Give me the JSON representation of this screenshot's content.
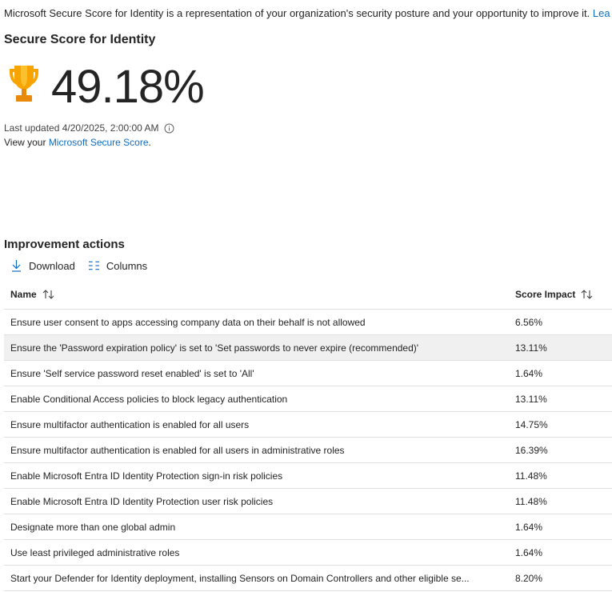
{
  "intro": {
    "text": "Microsoft Secure Score for Identity is a representation of your organization's security posture and your opportunity to improve it. ",
    "link": "Lea"
  },
  "score": {
    "title": "Secure Score for Identity",
    "value": "49.18%",
    "icon": "trophy-icon",
    "last_updated": "Last updated 4/20/2025, 2:00:00 AM",
    "view_prefix": "View your ",
    "view_link": "Microsoft Secure Score",
    "view_suffix": "."
  },
  "improvement": {
    "title": "Improvement actions",
    "toolbar": {
      "download_label": "Download",
      "columns_label": "Columns"
    },
    "columns": {
      "name": "Name",
      "impact": "Score Impact"
    },
    "rows": [
      {
        "name": "Ensure user consent to apps accessing company data on their behalf is not allowed",
        "impact": "6.56%"
      },
      {
        "name": "Ensure the 'Password expiration policy' is set to 'Set passwords to never expire (recommended)'",
        "impact": "13.11%"
      },
      {
        "name": "Ensure 'Self service password reset enabled' is set to 'All'",
        "impact": "1.64%"
      },
      {
        "name": "Enable Conditional Access policies to block legacy authentication",
        "impact": "13.11%"
      },
      {
        "name": "Ensure multifactor authentication is enabled for all users",
        "impact": "14.75%"
      },
      {
        "name": "Ensure multifactor authentication is enabled for all users in administrative roles",
        "impact": "16.39%"
      },
      {
        "name": "Enable Microsoft Entra ID Identity Protection sign-in risk policies",
        "impact": "11.48%"
      },
      {
        "name": "Enable Microsoft Entra ID Identity Protection user risk policies",
        "impact": "11.48%"
      },
      {
        "name": "Designate more than one global admin",
        "impact": "1.64%"
      },
      {
        "name": "Use least privileged administrative roles",
        "impact": "1.64%"
      },
      {
        "name": "Start your Defender for Identity deployment, installing Sensors on Domain Controllers and other eligible se...",
        "impact": "8.20%"
      }
    ]
  },
  "colors": {
    "link": "#0f6cbd",
    "trophy": "#f7a400",
    "hover_row": "#f0f0f0"
  }
}
